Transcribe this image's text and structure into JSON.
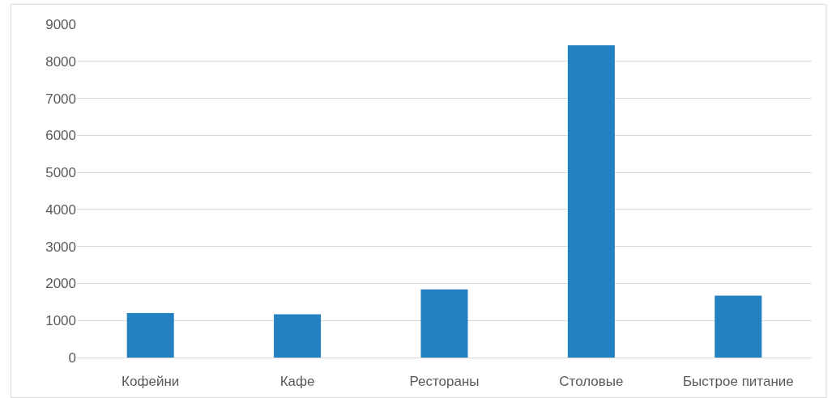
{
  "chart_data": {
    "type": "bar",
    "categories": [
      "Кофейни",
      "Кафе",
      "Рестораны",
      "Столовые",
      "Быстрое питание"
    ],
    "values": [
      1200,
      1170,
      1840,
      8430,
      1670
    ],
    "color": "#2481c1",
    "ylim": [
      0,
      9000
    ],
    "yticks": [
      0,
      1000,
      2000,
      3000,
      4000,
      5000,
      6000,
      7000,
      8000,
      9000
    ],
    "grid": "y"
  }
}
